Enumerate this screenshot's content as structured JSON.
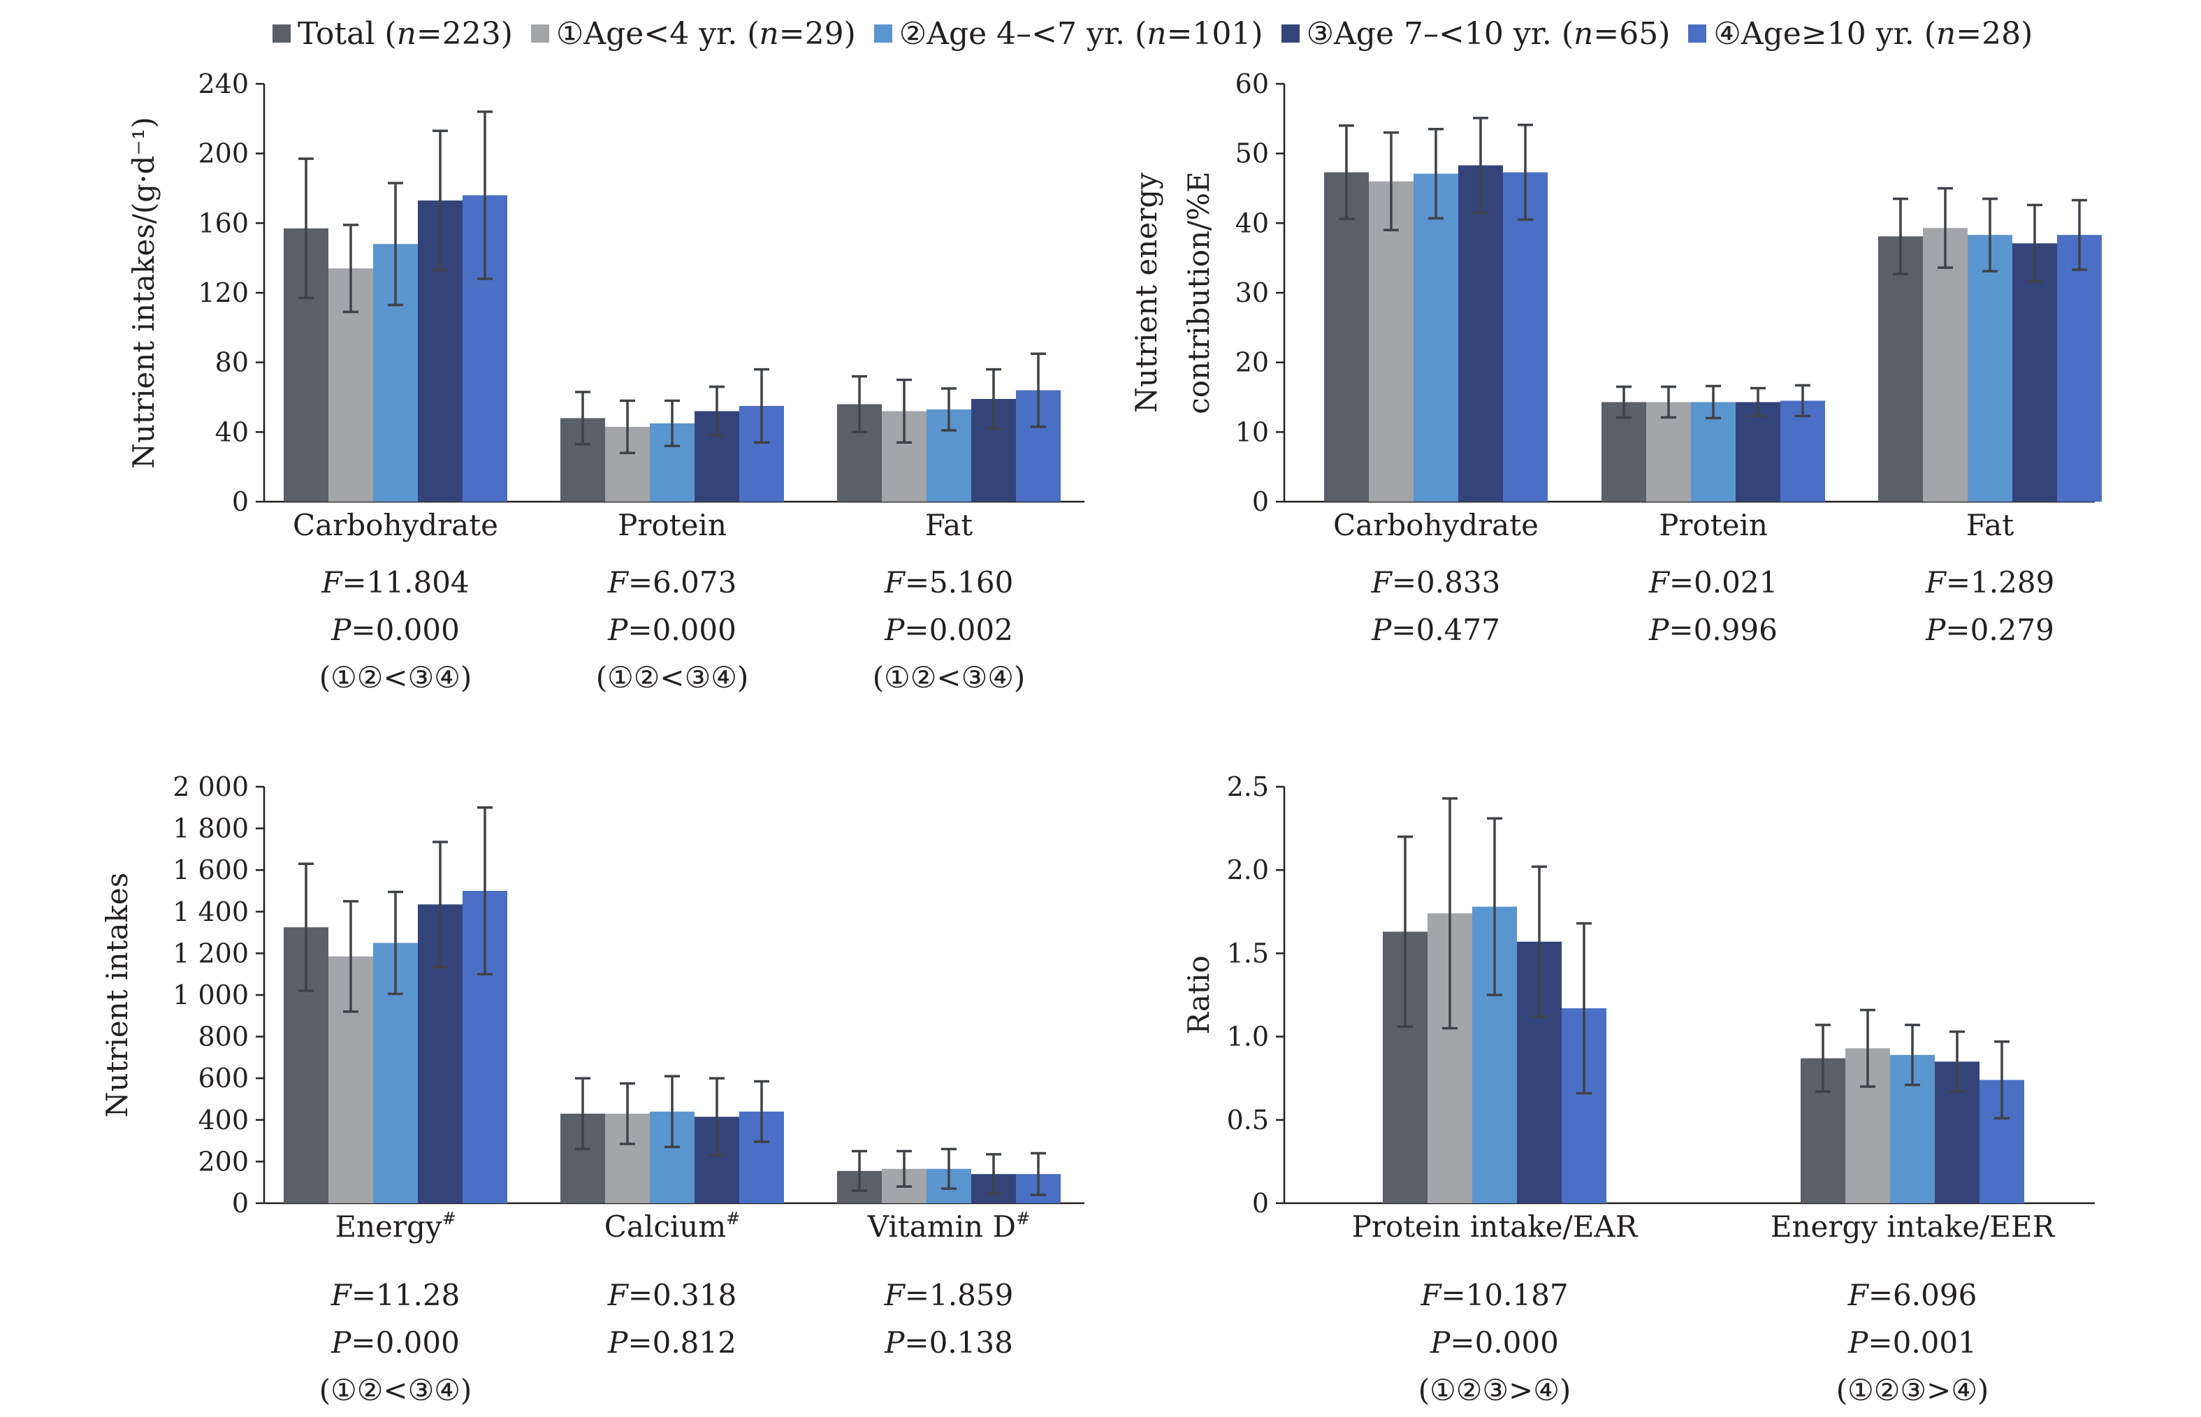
{
  "legend": [
    {
      "pre": "Total (",
      "n": "n",
      "post": "=223)",
      "color": "#5b5f66"
    },
    {
      "pre": "①Age<4 yr. (",
      "n": "n",
      "post": "=29)",
      "color": "#a3a5a8"
    },
    {
      "pre": "②Age 4–<7 yr. (",
      "n": "n",
      "post": "=101)",
      "color": "#5b95d0"
    },
    {
      "pre": "③Age 7–<10 yr. (",
      "n": "n",
      "post": "=65)",
      "color": "#34447a"
    },
    {
      "pre": "④Age≥10 yr. (",
      "n": "n",
      "post": "=28)",
      "color": "#4a6fc4"
    }
  ],
  "chart_data": [
    {
      "type": "bar",
      "ylabel": [
        "Nutrient intakes/(g·d⁻¹)"
      ],
      "ylim": [
        0,
        240
      ],
      "yticks": [
        "0",
        "40",
        "80",
        "120",
        "160",
        "200",
        "240"
      ],
      "categories": [
        "Carbohydrate",
        "Protein",
        "Fat"
      ],
      "category_sup": [
        "",
        "",
        ""
      ],
      "series": [
        {
          "values": [
            157,
            48,
            56
          ],
          "errors": [
            40,
            15,
            16
          ]
        },
        {
          "values": [
            134,
            43,
            52
          ],
          "errors": [
            25,
            15,
            18
          ]
        },
        {
          "values": [
            148,
            45,
            53
          ],
          "errors": [
            35,
            13,
            12
          ]
        },
        {
          "values": [
            173,
            52,
            59
          ],
          "errors": [
            40,
            14,
            17
          ]
        },
        {
          "values": [
            176,
            55,
            64
          ],
          "errors": [
            48,
            21,
            21
          ]
        }
      ],
      "stats": [
        {
          "F": "=11.804",
          "P": "=0.000",
          "note": "(①②<③④)"
        },
        {
          "F": "=6.073",
          "P": "=0.000",
          "note": "(①②<③④)"
        },
        {
          "F": "=5.160",
          "P": "=0.002",
          "note": "(①②<③④)"
        }
      ]
    },
    {
      "type": "bar",
      "ylabel": [
        "Nutrient energy",
        "contribution/%E"
      ],
      "ylim": [
        0,
        60
      ],
      "yticks": [
        "0",
        "10",
        "20",
        "30",
        "40",
        "50",
        "60"
      ],
      "categories": [
        "Carbohydrate",
        "Protein",
        "Fat"
      ],
      "category_sup": [
        "",
        "",
        ""
      ],
      "series": [
        {
          "values": [
            47.3,
            14.3,
            38.1
          ],
          "errors": [
            6.7,
            2.2,
            5.4
          ]
        },
        {
          "values": [
            46.0,
            14.3,
            39.3
          ],
          "errors": [
            7.0,
            2.2,
            5.7
          ]
        },
        {
          "values": [
            47.1,
            14.3,
            38.3
          ],
          "errors": [
            6.4,
            2.3,
            5.2
          ]
        },
        {
          "values": [
            48.3,
            14.3,
            37.1
          ],
          "errors": [
            6.8,
            2.0,
            5.5
          ]
        },
        {
          "values": [
            47.3,
            14.5,
            38.3
          ],
          "errors": [
            6.8,
            2.2,
            5.0
          ]
        }
      ],
      "stats": [
        {
          "F": "=0.833",
          "P": "=0.477",
          "note": ""
        },
        {
          "F": "=0.021",
          "P": "=0.996",
          "note": ""
        },
        {
          "F": "=1.289",
          "P": "=0.279",
          "note": ""
        }
      ]
    },
    {
      "type": "bar",
      "ylabel": [
        "Nutrient intakes"
      ],
      "ylim": [
        0,
        2000
      ],
      "yticks": [
        "0",
        "200",
        "400",
        "600",
        "800",
        "1 000",
        "1 200",
        "1 400",
        "1 600",
        "1 800",
        "2 000"
      ],
      "categories": [
        "Energy",
        "Calcium",
        "Vitamin D"
      ],
      "category_sup": [
        "#",
        "#",
        "#"
      ],
      "series": [
        {
          "values": [
            1325,
            430,
            155
          ],
          "errors": [
            305,
            170,
            95
          ]
        },
        {
          "values": [
            1185,
            430,
            165
          ],
          "errors": [
            265,
            145,
            85
          ]
        },
        {
          "values": [
            1250,
            440,
            165
          ],
          "errors": [
            245,
            170,
            95
          ]
        },
        {
          "values": [
            1435,
            415,
            140
          ],
          "errors": [
            300,
            185,
            95
          ]
        },
        {
          "values": [
            1500,
            440,
            140
          ],
          "errors": [
            400,
            145,
            100
          ]
        }
      ],
      "stats": [
        {
          "F": "=11.28",
          "P": "=0.000",
          "note": "(①②<③④)"
        },
        {
          "F": "=0.318",
          "P": "=0.812",
          "note": ""
        },
        {
          "F": "=1.859",
          "P": "=0.138",
          "note": ""
        }
      ]
    },
    {
      "type": "bar",
      "ylabel": [
        "Ratio"
      ],
      "ylim": [
        0,
        2.5
      ],
      "yticks": [
        "0",
        "0.5",
        "1.0",
        "1.5",
        "2.0",
        "2.5"
      ],
      "categories": [
        "Protein intake/EAR",
        "Energy intake/EER"
      ],
      "category_sup": [
        "",
        ""
      ],
      "series": [
        {
          "values": [
            1.63,
            0.87
          ],
          "errors": [
            0.57,
            0.2
          ]
        },
        {
          "values": [
            1.74,
            0.93
          ],
          "errors": [
            0.69,
            0.23
          ]
        },
        {
          "values": [
            1.78,
            0.89
          ],
          "errors": [
            0.53,
            0.18
          ]
        },
        {
          "values": [
            1.57,
            0.85
          ],
          "errors": [
            0.45,
            0.18
          ]
        },
        {
          "values": [
            1.17,
            0.74
          ],
          "errors": [
            0.51,
            0.23
          ]
        }
      ],
      "stats": [
        {
          "F": "=10.187",
          "P": "=0.000",
          "note": "(①②③>④)"
        },
        {
          "F": "=6.096",
          "P": "=0.001",
          "note": "(①②③>④)"
        }
      ]
    }
  ]
}
